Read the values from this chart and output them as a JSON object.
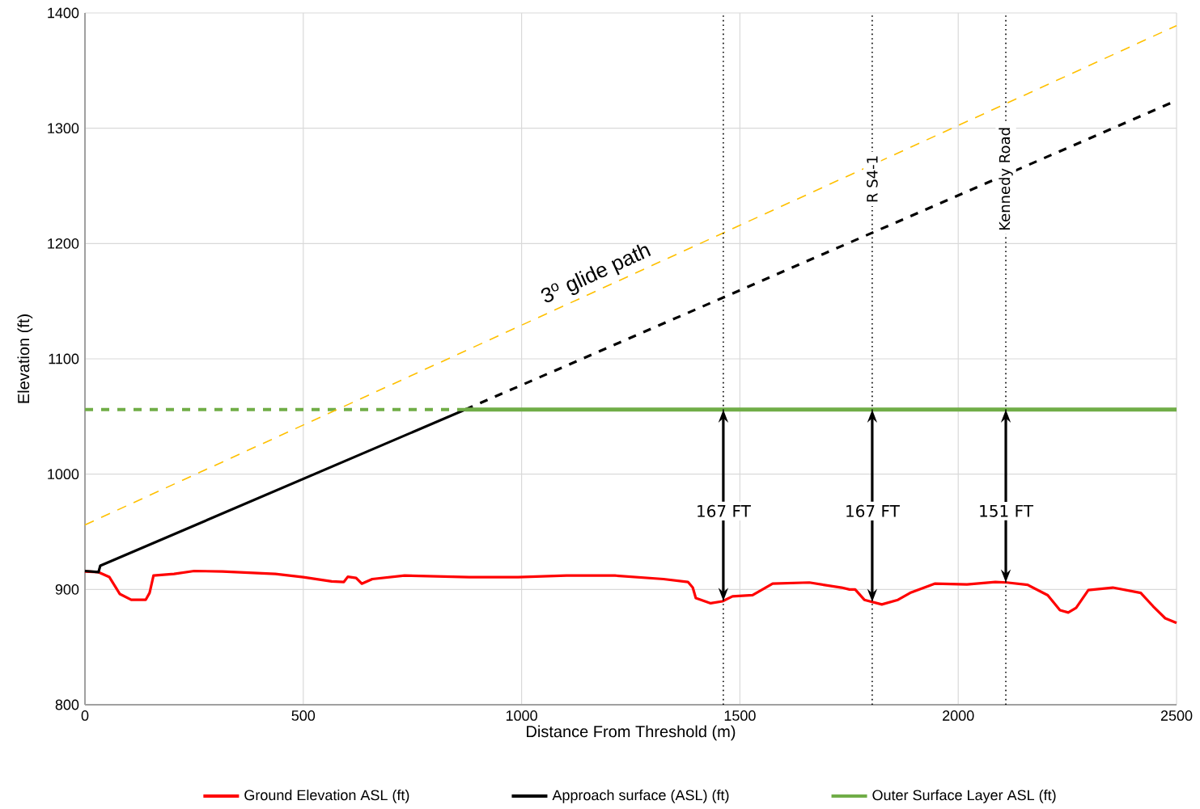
{
  "chart_data": {
    "type": "line",
    "xlabel": "Distance From Threshold (m)",
    "ylabel": "Elevation (ft)",
    "xlim": [
      0,
      2500
    ],
    "ylim": [
      800,
      1400
    ],
    "xticks": [
      0,
      500,
      1000,
      1500,
      2000,
      2500
    ],
    "yticks": [
      800,
      900,
      1000,
      1100,
      1200,
      1300,
      1400
    ],
    "grid": true,
    "legend": "bottom",
    "marker": "none",
    "series": [
      {
        "name": "Ground Elevation ASL (ft)",
        "color": "#ff0000",
        "x": [
          0,
          31,
          56,
          80,
          106,
          139,
          148,
          157,
          204,
          250,
          315,
          436,
          500,
          565,
          593,
          602,
          621,
          634,
          658,
          732,
          880,
          992,
          1103,
          1214,
          1325,
          1381,
          1392,
          1399,
          1433,
          1460,
          1483,
          1529,
          1575,
          1659,
          1733,
          1751,
          1764,
          1785,
          1825,
          1862,
          1890,
          1946,
          2020,
          2085,
          2111,
          2159,
          2205,
          2233,
          2252,
          2270,
          2298,
          2354,
          2418,
          2446,
          2474,
          2500
        ],
        "values": [
          915.6,
          915,
          910.7,
          896,
          891,
          891,
          897,
          912,
          913.5,
          916,
          915.6,
          913.5,
          910.7,
          907,
          906.5,
          911,
          910,
          905,
          909,
          912,
          910.7,
          910.7,
          912,
          912,
          909,
          906.5,
          901.6,
          892.5,
          888,
          889.7,
          894,
          895,
          905,
          906,
          901.6,
          900,
          900,
          891,
          887,
          891,
          897,
          905,
          904.4,
          906.5,
          906,
          904,
          895,
          882,
          880,
          884,
          899.5,
          901.6,
          897,
          885.5,
          875,
          871
        ]
      },
      {
        "name": "Approach surface (ASL) (ft)",
        "color": "#000000",
        "x": [
          0,
          31,
          35,
          871
        ],
        "values": [
          916,
          915,
          920.5,
          1056
        ]
      },
      {
        "color": "#000000",
        "line_style": "dashed",
        "x": [
          871,
          2500
        ],
        "values": [
          1056,
          1324
        ]
      },
      {
        "name": "Outer Surface Layer ASL (ft)",
        "color": "#70ad47",
        "x": [
          871,
          2500
        ],
        "values": [
          1056,
          1056
        ]
      },
      {
        "color": "#70ad47",
        "line_style": "dashed",
        "x": [
          0,
          871
        ],
        "values": [
          1056,
          1056
        ]
      },
      {
        "color": "#ffc000",
        "line_style": "dashed",
        "x": [
          0,
          2500
        ],
        "values": [
          956,
          1389
        ]
      }
    ],
    "ref_lines": [
      {
        "axis": "x",
        "value": 1462,
        "line_style": "dotted"
      },
      {
        "axis": "x",
        "value": 1803,
        "label": "R S4-1",
        "line_style": "dotted"
      },
      {
        "axis": "x",
        "value": 2109,
        "label": "Kennedy Road",
        "line_style": "dotted"
      }
    ],
    "annotations": [
      {
        "text": "3$^{o}$ glide path",
        "x": 1186,
        "y": 1161
      },
      {
        "text": "167 FT",
        "x": 1462,
        "y": 968
      },
      {
        "text": "167 FT",
        "x": 1803,
        "y": 968
      },
      {
        "text": "151 FT",
        "x": 2109,
        "y": 968
      }
    ]
  }
}
